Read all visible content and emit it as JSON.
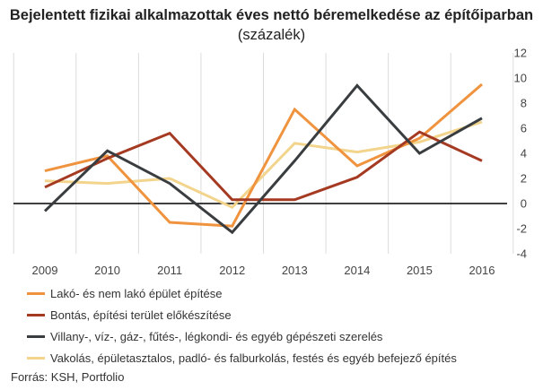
{
  "title": {
    "bold": "Bejelentett fizikai alkalmazottak éves nettó béremelkedése az építőiparban",
    "normal": " (százalék)"
  },
  "source": "Forrás: KSH, Portfolio",
  "colors": {
    "series1": "#f0933e",
    "series2": "#a53a22",
    "series3": "#3a3d3f",
    "series4": "#f2d48c",
    "zero_line": "#000000",
    "grid": "#dcdcdc"
  },
  "chart_data": {
    "type": "line",
    "title": "Bejelentett fizikai alkalmazottak éves nettó béremelkedése az építőiparban (százalék)",
    "categories": [
      "2009",
      "2010",
      "2011",
      "2012",
      "2013",
      "2014",
      "2015",
      "2016"
    ],
    "ylim": [
      -4,
      12
    ],
    "yticks": [
      "-4",
      "-2",
      "0",
      "2",
      "4",
      "6",
      "8",
      "10",
      "12"
    ],
    "y_axis_side": "right",
    "grid": "vertical",
    "legend_position": "bottom",
    "series": [
      {
        "name": "Lakó- és nem lakó épület építése",
        "values": [
          2.6,
          3.8,
          -1.5,
          -1.8,
          7.5,
          3.0,
          5.2,
          9.5
        ]
      },
      {
        "name": "Bontás, építési terület előkészítése",
        "values": [
          1.3,
          3.6,
          5.6,
          0.3,
          0.3,
          2.1,
          5.7,
          3.4
        ]
      },
      {
        "name": "Villany-, víz-, gáz-, fűtés-, légkondi- és egyéb gépészeti szerelés",
        "values": [
          -0.6,
          4.2,
          1.6,
          -2.3,
          3.4,
          9.4,
          4.0,
          6.8
        ]
      },
      {
        "name": "Vakolás, épületasztalos, padló- és falburkolás, festés és egyéb befejező építés",
        "values": [
          1.8,
          1.6,
          2.0,
          -0.3,
          4.8,
          4.1,
          4.9,
          6.5
        ]
      }
    ]
  }
}
